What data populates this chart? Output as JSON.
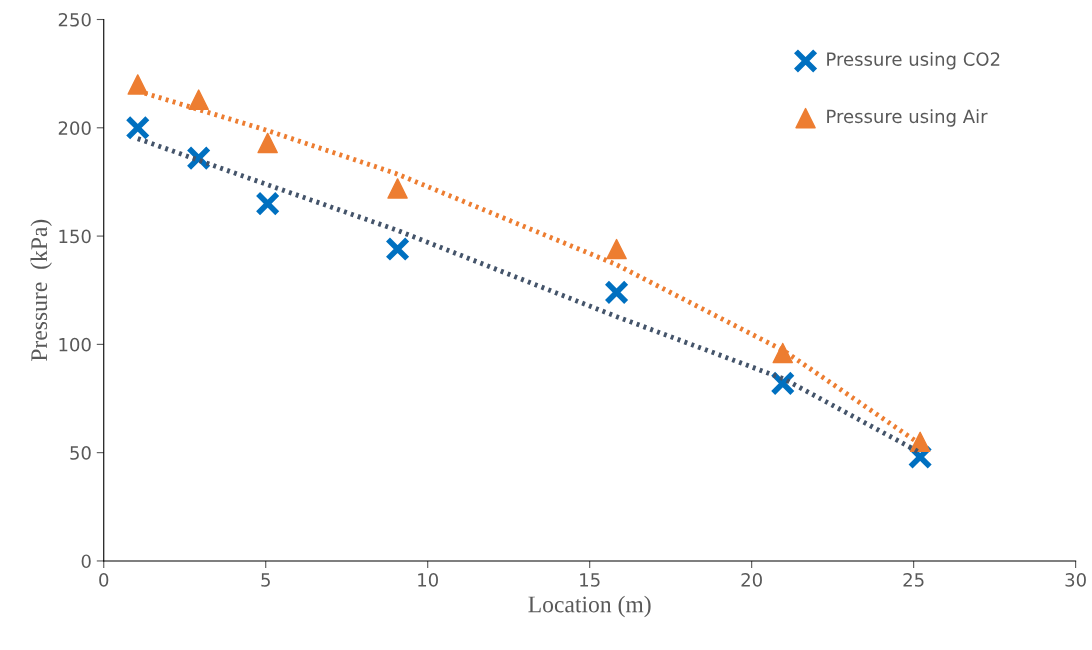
{
  "chart_data": {
    "type": "scatter",
    "xlabel": "Location (m)",
    "ylabel": "Pressure  (kPa)",
    "xlim": [
      0,
      30
    ],
    "xticks": [
      0,
      5,
      10,
      15,
      20,
      25,
      30
    ],
    "ylim": [
      0,
      250
    ],
    "yticks": [
      0,
      50,
      100,
      150,
      200,
      250
    ],
    "grid": false,
    "legend": "top right",
    "series": [
      {
        "name": "Pressure using CO2",
        "marker": "cross",
        "color": "#0070c0",
        "x": [
          1.05,
          2.93,
          5.06,
          9.07,
          15.83,
          20.96,
          25.2
        ],
        "values": [
          200,
          186,
          165,
          144,
          124,
          82,
          48
        ]
      },
      {
        "name": "Pressure using Air",
        "marker": "triangle",
        "color": "#ed7d31",
        "x": [
          1.05,
          2.93,
          5.06,
          9.07,
          15.83,
          20.96,
          25.2
        ],
        "values": [
          220,
          213,
          193,
          172,
          144,
          96,
          55
        ]
      },
      {
        "type": "line",
        "line_style": "dotted",
        "marker": "none",
        "color": "#44546a",
        "x": [
          1.05,
          5,
          9,
          15.8,
          21,
          25.2
        ],
        "values": [
          195,
          174,
          153,
          113,
          84,
          50
        ]
      },
      {
        "type": "line",
        "line_style": "dotted",
        "marker": "none",
        "color": "#ed7d31",
        "x": [
          1.05,
          5,
          9,
          15.8,
          21,
          25.2
        ],
        "values": [
          217,
          199,
          179,
          137,
          97,
          54
        ]
      }
    ]
  }
}
